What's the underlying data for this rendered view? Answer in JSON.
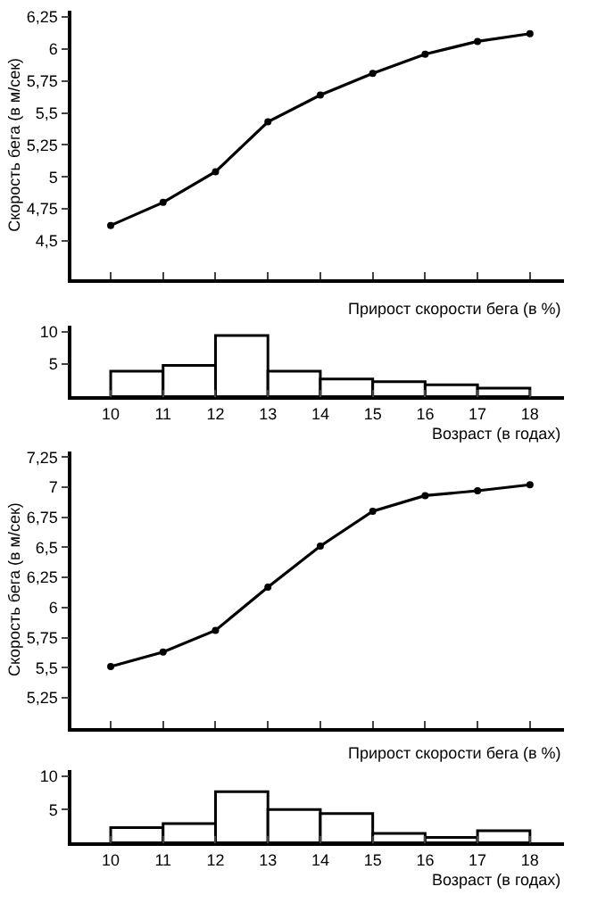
{
  "chart_data": [
    {
      "type": "line",
      "ylabel": "Скорость бега (в м/сек)",
      "x": [
        10,
        11,
        12,
        13,
        14,
        15,
        16,
        17,
        18
      ],
      "xlim": [
        9.25,
        18.65
      ],
      "xticks": [
        {
          "value": 10,
          "label": null
        },
        {
          "value": 11,
          "label": null
        },
        {
          "value": 12,
          "label": null
        },
        {
          "value": 13,
          "label": null
        },
        {
          "value": 14,
          "label": null
        },
        {
          "value": 15,
          "label": null
        },
        {
          "value": 16,
          "label": null
        },
        {
          "value": 17,
          "label": null
        },
        {
          "value": 18,
          "label": null
        }
      ],
      "ylim": [
        4.2,
        6.3
      ],
      "yticks": [
        {
          "value": 4.5,
          "label": "4,5"
        },
        {
          "value": 4.75,
          "label": "4,75"
        },
        {
          "value": 5,
          "label": "5"
        },
        {
          "value": 5.25,
          "label": "5,25"
        },
        {
          "value": 5.5,
          "label": "5,5"
        },
        {
          "value": 5.75,
          "label": "5,75"
        },
        {
          "value": 6,
          "label": "6"
        },
        {
          "value": 6.25,
          "label": "6,25"
        }
      ],
      "series": [
        {
          "color": "#000000",
          "values": [
            4.62,
            4.8,
            5.04,
            5.43,
            5.64,
            5.81,
            5.96,
            6.06,
            6.12
          ]
        }
      ],
      "marker": "circle",
      "tick_labels": "y"
    },
    {
      "type": "histogram",
      "title": "Прирост скорости бега (в %)",
      "xlabel": "Возраст (в годах)",
      "bins": [
        10,
        11,
        12,
        13,
        14,
        15,
        16,
        17,
        18
      ],
      "values": [
        3.9,
        4.8,
        9.4,
        3.9,
        2.7,
        2.3,
        1.8,
        1.3
      ],
      "color": "#000000",
      "xlim": [
        9.25,
        18.65
      ],
      "xticks": [
        10,
        11,
        12,
        13,
        14,
        15,
        16,
        17,
        18
      ],
      "ylim": [
        0,
        11
      ],
      "yticks": [
        5,
        10
      ]
    },
    {
      "type": "line",
      "ylabel": "Скорость бега (в м/сек)",
      "x": [
        10,
        11,
        12,
        13,
        14,
        15,
        16,
        17,
        18
      ],
      "xlim": [
        9.25,
        18.65
      ],
      "xticks": [
        {
          "value": 10,
          "label": null
        },
        {
          "value": 11,
          "label": null
        },
        {
          "value": 12,
          "label": null
        },
        {
          "value": 13,
          "label": null
        },
        {
          "value": 14,
          "label": null
        },
        {
          "value": 15,
          "label": null
        },
        {
          "value": 16,
          "label": null
        },
        {
          "value": 17,
          "label": null
        },
        {
          "value": 18,
          "label": null
        }
      ],
      "ylim": [
        5.0,
        7.3
      ],
      "yticks": [
        {
          "value": 5.25,
          "label": "5,25"
        },
        {
          "value": 5.5,
          "label": "5,5"
        },
        {
          "value": 5.75,
          "label": "5,75"
        },
        {
          "value": 6,
          "label": "6"
        },
        {
          "value": 6.25,
          "label": "6,25"
        },
        {
          "value": 6.5,
          "label": "6,5"
        },
        {
          "value": 6.75,
          "label": "6,75"
        },
        {
          "value": 7,
          "label": "7"
        },
        {
          "value": 7.25,
          "label": "7,25"
        }
      ],
      "series": [
        {
          "color": "#000000",
          "values": [
            5.51,
            5.63,
            5.81,
            6.17,
            6.51,
            6.8,
            6.93,
            6.97,
            7.02
          ]
        }
      ],
      "marker": "circle",
      "tick_labels": "y"
    },
    {
      "type": "histogram",
      "title": "Прирост скорости бега (в %)",
      "xlabel": "Возраст (в годах)",
      "bins": [
        10,
        11,
        12,
        13,
        14,
        15,
        16,
        17,
        18
      ],
      "values": [
        2.3,
        2.9,
        7.7,
        5.0,
        4.4,
        1.4,
        0.8,
        1.8
      ],
      "color": "#000000",
      "xlim": [
        9.25,
        18.65
      ],
      "xticks": [
        10,
        11,
        12,
        13,
        14,
        15,
        16,
        17,
        18
      ],
      "ylim": [
        0,
        11
      ],
      "yticks": [
        5,
        10
      ]
    }
  ]
}
